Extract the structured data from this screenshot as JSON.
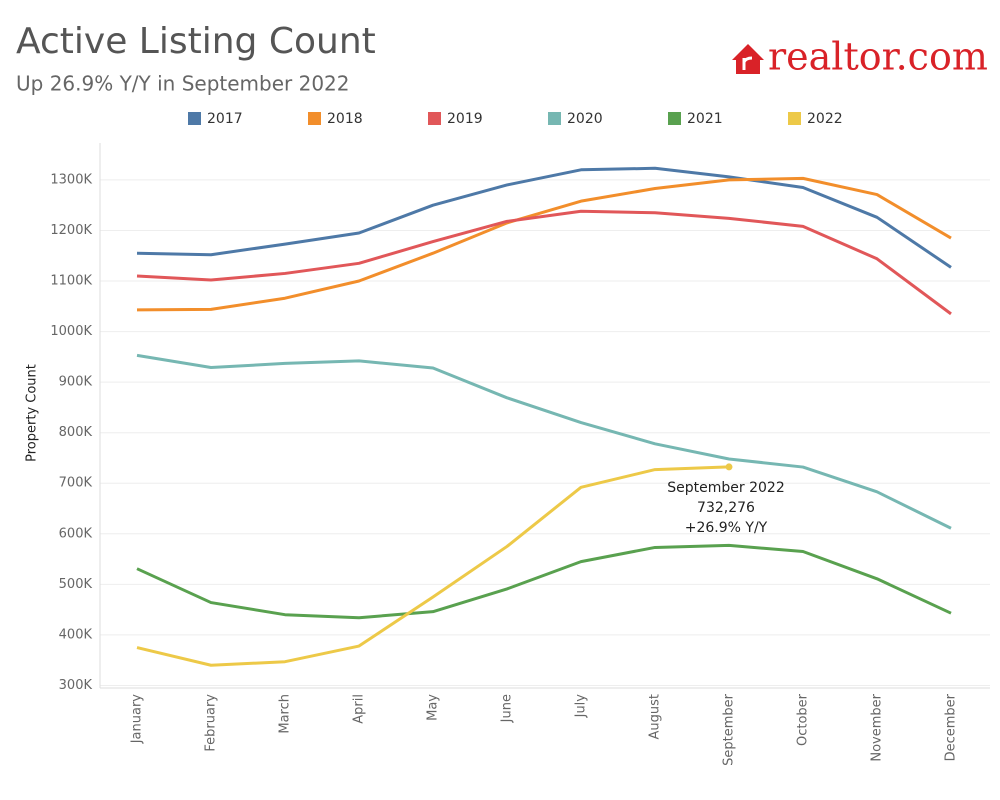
{
  "chart_data": {
    "type": "line",
    "title": "Active Listing Count",
    "subtitle": "Up 26.9% Y/Y in September 2022",
    "logo": "realtor.com",
    "y_label": "Property Count",
    "categories": [
      "January",
      "February",
      "March",
      "April",
      "May",
      "June",
      "July",
      "August",
      "September",
      "October",
      "November",
      "December"
    ],
    "ylim": [
      295000,
      1373000
    ],
    "yticks": [
      {
        "value": 300000,
        "label": "300K"
      },
      {
        "value": 400000,
        "label": "400K"
      },
      {
        "value": 500000,
        "label": "500K"
      },
      {
        "value": 600000,
        "label": "600K"
      },
      {
        "value": 700000,
        "label": "700K"
      },
      {
        "value": 800000,
        "label": "800K"
      },
      {
        "value": 900000,
        "label": "900K"
      },
      {
        "value": 1000000,
        "label": "1000K"
      },
      {
        "value": 1100000,
        "label": "1100K"
      },
      {
        "value": 1200000,
        "label": "1200K"
      },
      {
        "value": 1300000,
        "label": "1300K"
      }
    ],
    "grid": true,
    "legend": "top",
    "series": [
      {
        "name": "2017",
        "color": "#4e79a7",
        "values": [
          1155000,
          1152000,
          1173000,
          1195000,
          1250000,
          1290000,
          1320000,
          1323000,
          1306000,
          1285000,
          1226000,
          1127000
        ]
      },
      {
        "name": "2018",
        "color": "#f28e2b",
        "values": [
          1043000,
          1044000,
          1066000,
          1100000,
          1155000,
          1215000,
          1258000,
          1283000,
          1300000,
          1303000,
          1271000,
          1185000
        ]
      },
      {
        "name": "2019",
        "color": "#e15759",
        "values": [
          1110000,
          1102000,
          1115000,
          1135000,
          1178000,
          1218000,
          1238000,
          1235000,
          1224000,
          1208000,
          1144000,
          1035000
        ]
      },
      {
        "name": "2020",
        "color": "#76b7b2",
        "values": [
          953000,
          929000,
          937000,
          942000,
          928000,
          869000,
          820000,
          778000,
          748000,
          732000,
          683000,
          611000
        ]
      },
      {
        "name": "2021",
        "color": "#59a14f",
        "values": [
          531000,
          464000,
          440000,
          434000,
          446000,
          491000,
          545000,
          573000,
          577000,
          565000,
          511000,
          443000
        ]
      },
      {
        "name": "2022",
        "color": "#edc948",
        "values": [
          375000,
          340000,
          347000,
          378000,
          475000,
          575000,
          692000,
          727000,
          732276,
          null,
          null,
          null
        ],
        "value_labels": [
          null,
          null,
          null,
          null,
          null,
          null,
          null,
          null,
          "732,276",
          null,
          null,
          null
        ]
      }
    ],
    "annotation": [
      "September 2022",
      "+26.9% Y/Y"
    ]
  }
}
